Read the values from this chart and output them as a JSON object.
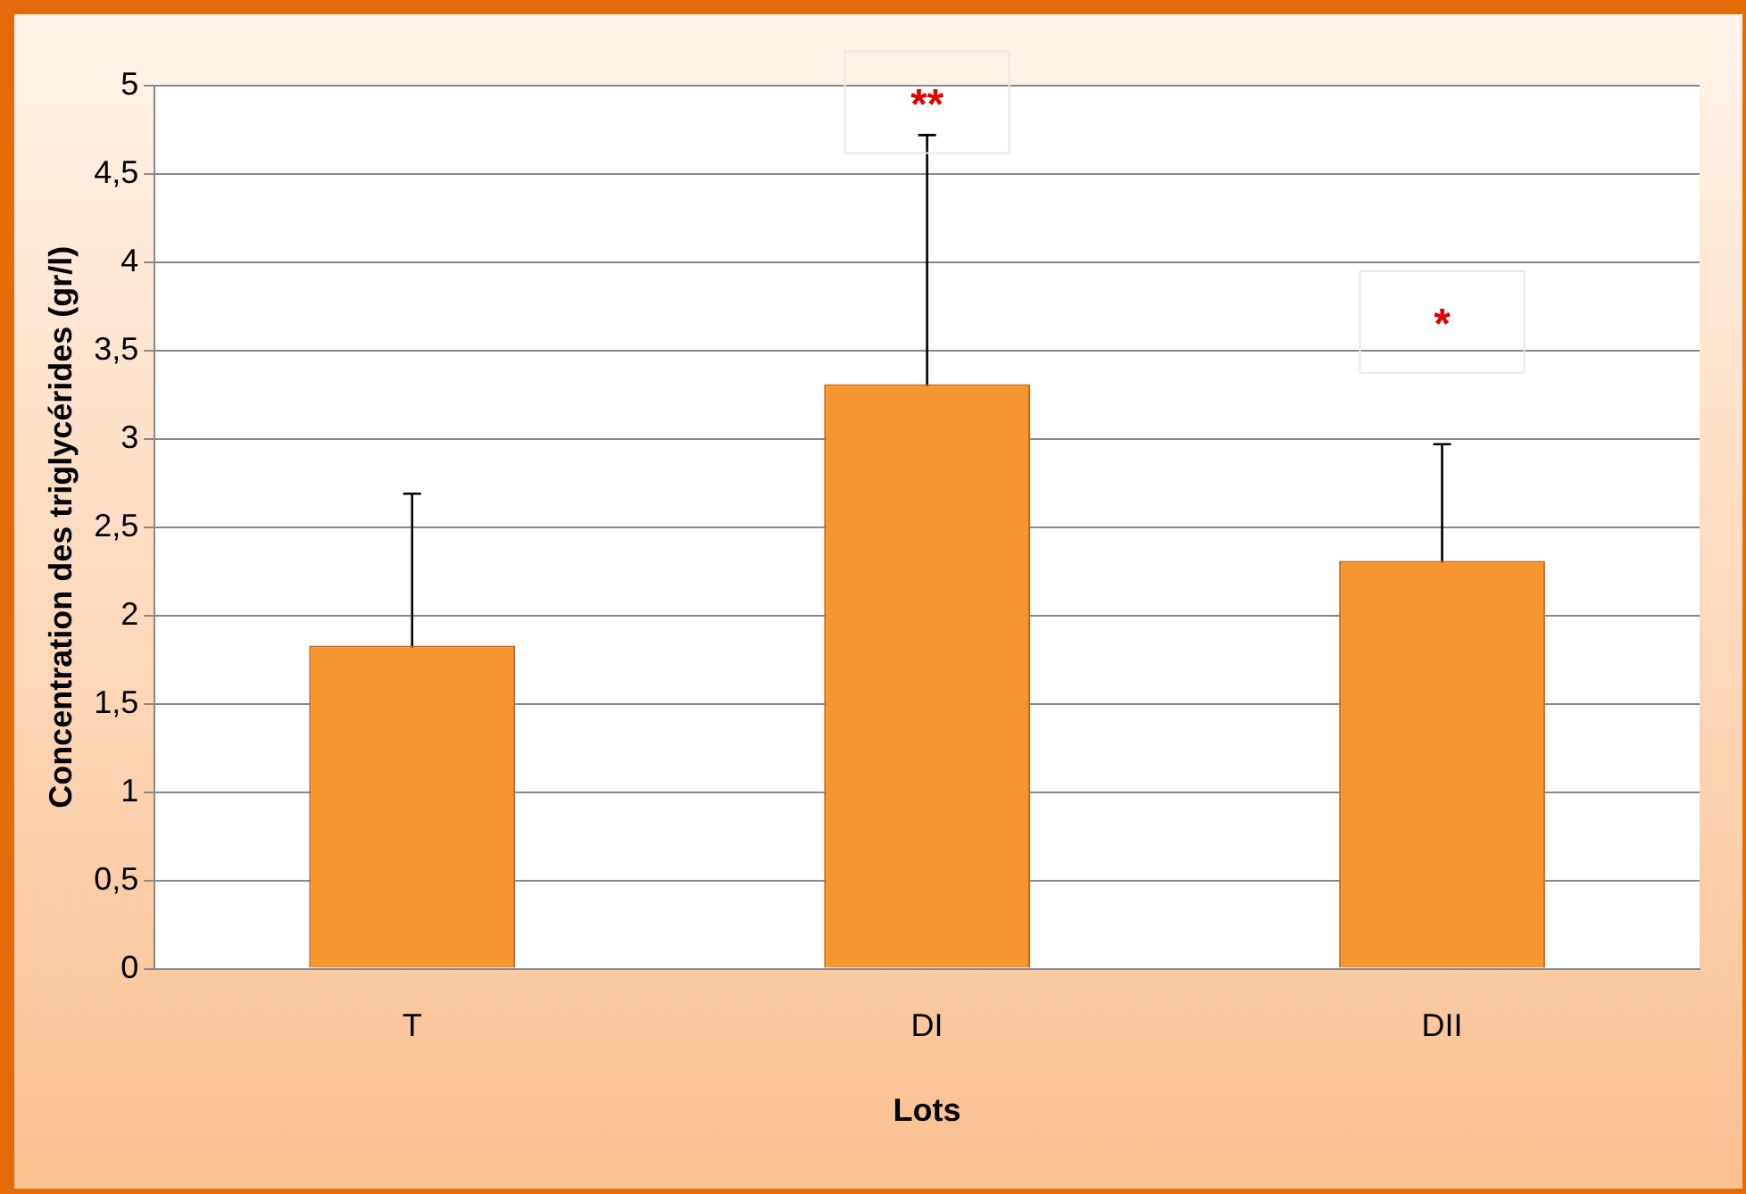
{
  "chart_data": {
    "type": "bar",
    "xlabel": "Lots",
    "ylabel": "Concentration des triglycérides (gr/l)",
    "categories": [
      "T",
      "DI",
      "DII"
    ],
    "values": [
      1.83,
      3.31,
      2.31
    ],
    "errors": [
      0.86,
      1.41,
      0.66
    ],
    "color": "#f7962e",
    "ylim": [
      0,
      5
    ],
    "yticks": [
      0,
      {
        "value": 0.5,
        "label": "0,5"
      },
      1,
      {
        "value": 1.5,
        "label": "1,5"
      },
      2,
      {
        "value": 2.5,
        "label": "2,5"
      },
      3,
      {
        "value": 3.5,
        "label": "3,5"
      },
      4,
      {
        "value": 4.5,
        "label": "4,5"
      },
      5
    ],
    "grid": "y",
    "legend": false,
    "annotations": [
      "**",
      "*"
    ]
  }
}
